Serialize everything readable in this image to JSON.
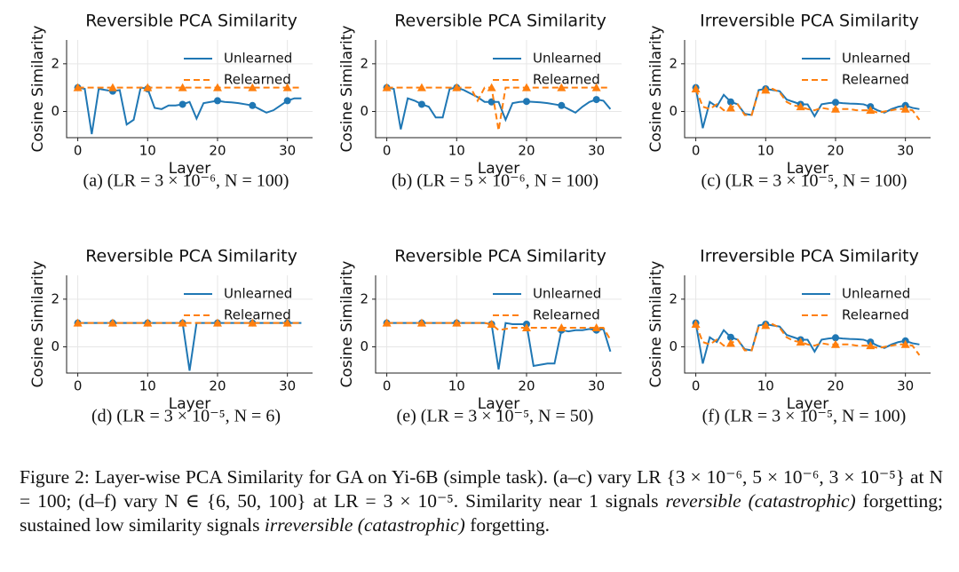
{
  "chart_data": [
    {
      "type": "line",
      "title": "Reversible PCA Similarity",
      "xlabel": "Layer",
      "ylabel": "Cosine Similarity",
      "subcaption": "(a) (LR = 3 × 10⁻⁶,  N = 100)",
      "x": [
        0,
        1,
        2,
        3,
        4,
        5,
        6,
        7,
        8,
        9,
        10,
        11,
        12,
        13,
        14,
        15,
        16,
        17,
        18,
        19,
        20,
        21,
        22,
        23,
        24,
        25,
        26,
        27,
        28,
        29,
        30,
        31,
        32
      ],
      "xlim": [
        -1.6,
        33.6
      ],
      "xticks": [
        0,
        10,
        20,
        30
      ],
      "ylim": [
        -1.1,
        3
      ],
      "yticks": [
        0,
        2
      ],
      "grid": true,
      "legend": "upper right",
      "marker_every": 5,
      "series": [
        {
          "name": "Unlearned",
          "color": "#1f77b4",
          "dash": "solid",
          "marker": "circle",
          "values": [
            1.0,
            0.95,
            -0.95,
            0.95,
            0.9,
            0.85,
            0.9,
            -0.55,
            -0.35,
            1.0,
            0.95,
            0.15,
            0.1,
            0.25,
            0.25,
            0.3,
            0.4,
            -0.3,
            0.35,
            0.4,
            0.45,
            0.4,
            0.38,
            0.35,
            0.3,
            0.25,
            0.1,
            -0.05,
            0.05,
            0.25,
            0.45,
            0.55,
            0.55
          ]
        },
        {
          "name": "Relearned",
          "color": "#ff7f0e",
          "dash": "dashed",
          "marker": "triangle",
          "values": [
            1.0,
            1.0,
            1.0,
            1.0,
            1.0,
            1.0,
            1.0,
            1.0,
            1.0,
            1.0,
            1.0,
            1.0,
            1.0,
            1.0,
            1.0,
            1.0,
            1.0,
            1.0,
            1.0,
            1.0,
            1.0,
            1.0,
            1.0,
            1.0,
            1.0,
            1.0,
            1.0,
            1.0,
            1.0,
            1.0,
            1.0,
            1.0,
            1.0
          ]
        }
      ]
    },
    {
      "type": "line",
      "title": "Reversible PCA Similarity",
      "xlabel": "Layer",
      "ylabel": "Cosine Similarity",
      "subcaption": "(b) (LR = 5 × 10⁻⁶,  N = 100)",
      "x": [
        0,
        1,
        2,
        3,
        4,
        5,
        6,
        7,
        8,
        9,
        10,
        11,
        12,
        13,
        14,
        15,
        16,
        17,
        18,
        19,
        20,
        21,
        22,
        23,
        24,
        25,
        26,
        27,
        28,
        29,
        30,
        31,
        32
      ],
      "xlim": [
        -1.6,
        33.6
      ],
      "xticks": [
        0,
        10,
        20,
        30
      ],
      "ylim": [
        -1.1,
        3
      ],
      "yticks": [
        0,
        2
      ],
      "grid": true,
      "legend": "upper right",
      "marker_every": 5,
      "series": [
        {
          "name": "Unlearned",
          "color": "#1f77b4",
          "dash": "solid",
          "marker": "circle",
          "values": [
            1.0,
            0.95,
            -0.75,
            0.55,
            0.45,
            0.3,
            0.2,
            -0.25,
            -0.25,
            0.95,
            1.0,
            0.9,
            0.75,
            0.6,
            0.4,
            0.4,
            0.4,
            -0.35,
            0.35,
            0.4,
            0.42,
            0.4,
            0.38,
            0.35,
            0.3,
            0.25,
            0.1,
            -0.05,
            0.2,
            0.4,
            0.5,
            0.45,
            0.1
          ]
        },
        {
          "name": "Relearned",
          "color": "#ff7f0e",
          "dash": "dashed",
          "marker": "triangle",
          "values": [
            1.0,
            1.0,
            1.0,
            1.0,
            1.0,
            1.0,
            1.0,
            1.0,
            1.0,
            1.0,
            1.0,
            1.0,
            1.0,
            0.45,
            1.0,
            1.0,
            -0.8,
            1.0,
            1.0,
            1.0,
            1.0,
            1.0,
            1.0,
            1.0,
            1.0,
            1.0,
            1.0,
            1.0,
            1.0,
            1.0,
            1.0,
            1.0,
            1.0
          ]
        }
      ]
    },
    {
      "type": "line",
      "title": "Irreversible PCA Similarity",
      "xlabel": "Layer",
      "ylabel": "Cosine Similarity",
      "subcaption": "(c) (LR = 3 × 10⁻⁵,  N = 100)",
      "x": [
        0,
        1,
        2,
        3,
        4,
        5,
        6,
        7,
        8,
        9,
        10,
        11,
        12,
        13,
        14,
        15,
        16,
        17,
        18,
        19,
        20,
        21,
        22,
        23,
        24,
        25,
        26,
        27,
        28,
        29,
        30,
        31,
        32
      ],
      "xlim": [
        -1.6,
        33.6
      ],
      "xticks": [
        0,
        10,
        20,
        30
      ],
      "ylim": [
        -1.1,
        3
      ],
      "yticks": [
        0,
        2
      ],
      "grid": true,
      "legend": "upper right",
      "marker_every": 5,
      "series": [
        {
          "name": "Unlearned",
          "color": "#1f77b4",
          "dash": "solid",
          "marker": "circle",
          "values": [
            1.0,
            -0.7,
            0.4,
            0.2,
            0.7,
            0.4,
            0.3,
            -0.1,
            -0.15,
            0.9,
            0.95,
            0.9,
            0.85,
            0.5,
            0.4,
            0.3,
            0.3,
            -0.2,
            0.3,
            0.35,
            0.38,
            0.35,
            0.33,
            0.32,
            0.3,
            0.2,
            0.05,
            -0.05,
            0.1,
            0.2,
            0.25,
            0.15,
            0.1
          ]
        },
        {
          "name": "Relearned",
          "color": "#ff7f0e",
          "dash": "dashed",
          "marker": "triangle",
          "values": [
            0.95,
            0.2,
            0.1,
            0.3,
            0.05,
            0.15,
            0.3,
            -0.15,
            -0.15,
            0.85,
            0.9,
            0.95,
            0.8,
            0.4,
            0.25,
            0.2,
            0.1,
            0.05,
            0.15,
            0.1,
            0.1,
            0.1,
            0.1,
            0.05,
            0.05,
            0.05,
            -0.05,
            0.0,
            0.05,
            0.1,
            0.1,
            0.05,
            -0.35
          ]
        }
      ]
    },
    {
      "type": "line",
      "title": "Reversible PCA Similarity",
      "xlabel": "Layer",
      "ylabel": "Cosine Similarity",
      "subcaption": "(d) (LR = 3 × 10⁻⁵,  N = 6)",
      "x": [
        0,
        1,
        2,
        3,
        4,
        5,
        6,
        7,
        8,
        9,
        10,
        11,
        12,
        13,
        14,
        15,
        16,
        17,
        18,
        19,
        20,
        21,
        22,
        23,
        24,
        25,
        26,
        27,
        28,
        29,
        30,
        31,
        32
      ],
      "xlim": [
        -1.6,
        33.6
      ],
      "xticks": [
        0,
        10,
        20,
        30
      ],
      "ylim": [
        -1.1,
        3
      ],
      "yticks": [
        0,
        2
      ],
      "grid": true,
      "legend": "upper right",
      "marker_every": 5,
      "series": [
        {
          "name": "Unlearned",
          "color": "#1f77b4",
          "dash": "solid",
          "marker": "circle",
          "values": [
            1.0,
            1.0,
            1.0,
            1.0,
            1.0,
            1.0,
            1.0,
            1.0,
            1.0,
            1.0,
            1.0,
            1.0,
            1.0,
            1.0,
            1.0,
            1.0,
            -1.0,
            1.0,
            1.0,
            1.0,
            1.0,
            1.0,
            1.0,
            1.0,
            1.0,
            1.0,
            1.0,
            1.0,
            1.0,
            1.0,
            1.0,
            1.0,
            1.0
          ]
        },
        {
          "name": "Relearned",
          "color": "#ff7f0e",
          "dash": "dashed",
          "marker": "triangle",
          "values": [
            1.0,
            1.0,
            1.0,
            1.0,
            1.0,
            1.0,
            1.0,
            1.0,
            1.0,
            1.0,
            1.0,
            1.0,
            1.0,
            1.0,
            1.0,
            1.0,
            1.0,
            1.0,
            1.0,
            1.0,
            1.0,
            1.0,
            1.0,
            1.0,
            1.0,
            1.0,
            1.0,
            1.0,
            1.0,
            1.0,
            1.0,
            1.0,
            1.0
          ]
        }
      ]
    },
    {
      "type": "line",
      "title": "Reversible PCA Similarity",
      "xlabel": "Layer",
      "ylabel": "Cosine Similarity",
      "subcaption": "(e) (LR = 3 × 10⁻⁵,  N = 50)",
      "x": [
        0,
        1,
        2,
        3,
        4,
        5,
        6,
        7,
        8,
        9,
        10,
        11,
        12,
        13,
        14,
        15,
        16,
        17,
        18,
        19,
        20,
        21,
        22,
        23,
        24,
        25,
        26,
        27,
        28,
        29,
        30,
        31,
        32
      ],
      "xlim": [
        -1.6,
        33.6
      ],
      "xticks": [
        0,
        10,
        20,
        30
      ],
      "ylim": [
        -1.1,
        3
      ],
      "yticks": [
        0,
        2
      ],
      "grid": true,
      "legend": "upper right",
      "marker_every": 5,
      "series": [
        {
          "name": "Unlearned",
          "color": "#1f77b4",
          "dash": "solid",
          "marker": "circle",
          "values": [
            1.0,
            1.0,
            1.0,
            1.0,
            1.0,
            1.0,
            1.0,
            1.0,
            1.0,
            1.0,
            1.0,
            1.0,
            1.0,
            1.0,
            1.0,
            0.95,
            -0.95,
            1.0,
            0.95,
            0.95,
            0.95,
            -0.8,
            -0.75,
            -0.7,
            -0.7,
            0.7,
            0.65,
            0.7,
            0.7,
            0.75,
            0.7,
            0.75,
            -0.2
          ]
        },
        {
          "name": "Relearned",
          "color": "#ff7f0e",
          "dash": "dashed",
          "marker": "triangle",
          "values": [
            1.0,
            1.0,
            1.0,
            1.0,
            1.0,
            1.0,
            1.0,
            1.0,
            1.0,
            1.0,
            1.0,
            1.0,
            1.0,
            1.0,
            1.0,
            0.95,
            0.7,
            0.75,
            0.8,
            0.8,
            0.8,
            0.8,
            0.8,
            0.8,
            0.8,
            0.8,
            0.8,
            0.8,
            0.8,
            0.8,
            0.8,
            0.8,
            0.3
          ]
        }
      ]
    },
    {
      "type": "line",
      "title": "Irreversible PCA Similarity",
      "xlabel": "Layer",
      "ylabel": "Cosine Similarity",
      "subcaption": "(f) (LR = 3 × 10⁻⁵,  N = 100)",
      "x": [
        0,
        1,
        2,
        3,
        4,
        5,
        6,
        7,
        8,
        9,
        10,
        11,
        12,
        13,
        14,
        15,
        16,
        17,
        18,
        19,
        20,
        21,
        22,
        23,
        24,
        25,
        26,
        27,
        28,
        29,
        30,
        31,
        32
      ],
      "xlim": [
        -1.6,
        33.6
      ],
      "xticks": [
        0,
        10,
        20,
        30
      ],
      "ylim": [
        -1.1,
        3
      ],
      "yticks": [
        0,
        2
      ],
      "grid": true,
      "legend": "upper right",
      "marker_every": 5,
      "series": [
        {
          "name": "Unlearned",
          "color": "#1f77b4",
          "dash": "solid",
          "marker": "circle",
          "values": [
            1.0,
            -0.7,
            0.4,
            0.2,
            0.7,
            0.4,
            0.3,
            -0.1,
            -0.15,
            0.9,
            0.95,
            0.9,
            0.85,
            0.5,
            0.4,
            0.3,
            0.3,
            -0.2,
            0.3,
            0.35,
            0.38,
            0.35,
            0.33,
            0.32,
            0.3,
            0.2,
            0.05,
            -0.05,
            0.1,
            0.2,
            0.25,
            0.15,
            0.1
          ]
        },
        {
          "name": "Relearned",
          "color": "#ff7f0e",
          "dash": "dashed",
          "marker": "triangle",
          "values": [
            0.95,
            0.2,
            0.1,
            0.3,
            0.05,
            0.15,
            0.3,
            -0.15,
            -0.15,
            0.85,
            0.9,
            0.95,
            0.8,
            0.4,
            0.25,
            0.2,
            0.1,
            0.05,
            0.15,
            0.1,
            0.1,
            0.1,
            0.1,
            0.05,
            0.05,
            0.05,
            -0.05,
            0.0,
            0.05,
            0.1,
            0.1,
            0.05,
            -0.35
          ]
        }
      ]
    }
  ],
  "caption": [
    {
      "text": "Figure 2: Layer-wise PCA Similarity for GA on Yi-6B (simple task). (a–c) vary LR {3 × 10⁻⁶, 5 × 10⁻⁶, 3 × 10⁻⁵} at N = 100; (d–f) vary N ∈ {6, 50, 100} at LR = 3 × 10⁻⁵. Similarity near 1 signals ",
      "italic": false
    },
    {
      "text": "reversible (catastrophic)",
      "italic": true
    },
    {
      "text": " forgetting; sustained low similarity signals ",
      "italic": false
    },
    {
      "text": "irreversible (catastrophic)",
      "italic": true
    },
    {
      "text": " forgetting.",
      "italic": false
    }
  ]
}
